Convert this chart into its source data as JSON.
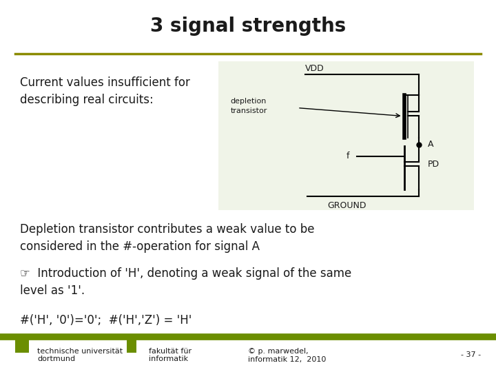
{
  "title": "3 signal strengths",
  "title_fontsize": 20,
  "title_fontweight": "bold",
  "bg_color": "#ffffff",
  "top_line_color": "#8B8B00",
  "bottom_bar_color": "#6B8E00",
  "text_left_1": "Current values insufficient for\ndescribing real circuits:",
  "text_body_1": "Depletion transistor contributes a weak value to be\nconsidered in the #-operation for signal A",
  "text_body_2": "☞  Introduction of 'H', denoting a weak signal of the same\nlevel as '1'.",
  "text_body_3": "#('H', '0')='0';  #('H','Z') = 'H'",
  "footer_left": "technische universität\ndortmund",
  "footer_mid": "fakultät für\ninformatik",
  "footer_right": "© p. marwedel,\ninformatik 12,  2010",
  "footer_page": "- 37 -",
  "circuit_bg": "#f0f4e8",
  "text_color": "#1a1a1a",
  "green_color": "#6B8E00",
  "body_fontsize": 12,
  "footer_fontsize": 8
}
